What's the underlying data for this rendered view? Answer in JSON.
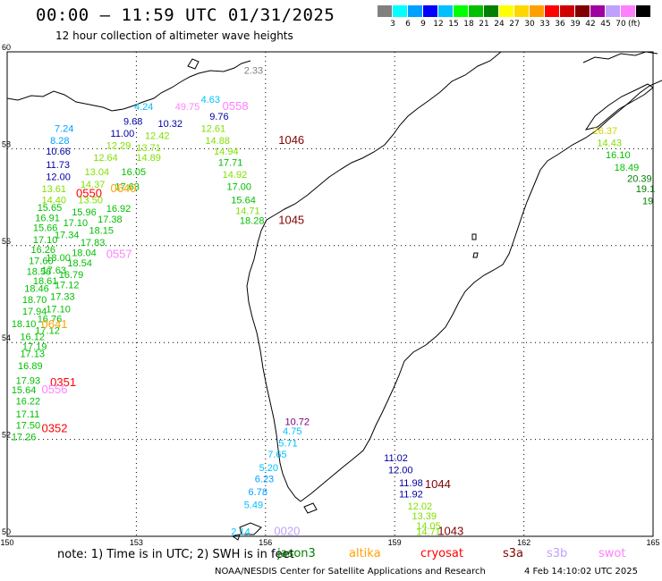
{
  "header": {
    "title": "00:00 – 11:59 UTC 01/31/2025",
    "subtitle": "12 hour collection of altimeter wave heights"
  },
  "legend": {
    "unit": "(ft)",
    "colors": [
      "#808080",
      "#00ffff",
      "#00a0ff",
      "#0000ff",
      "#00c0ff",
      "#00ff00",
      "#00c000",
      "#008000",
      "#ffff00",
      "#ffd700",
      "#ffa000",
      "#ff0000",
      "#d00000",
      "#800000",
      "#a000a0",
      "#c0a0ff",
      "#ff80ff",
      "#000000"
    ],
    "labels": [
      "3",
      "6",
      "9",
      "12",
      "15",
      "18",
      "21",
      "24",
      "27",
      "30",
      "33",
      "36",
      "39",
      "42",
      "45",
      "70"
    ]
  },
  "axes": {
    "x_ticks": [
      "150",
      "153",
      "156",
      "159",
      "162",
      "165"
    ],
    "y_ticks": [
      "60",
      "58",
      "56",
      "54",
      "52",
      "50"
    ]
  },
  "chart_data": {
    "type": "scatter",
    "lon_range": [
      150,
      165
    ],
    "lat_range": [
      50,
      60
    ],
    "grid": true,
    "time_labels": [
      {
        "text": "0558",
        "lon": 155.0,
        "lat": 58.8,
        "color": "#ff80ff"
      },
      {
        "text": "1046",
        "lon": 156.3,
        "lat": 58.1,
        "color": "#800000"
      },
      {
        "text": "0550",
        "lon": 151.6,
        "lat": 57.0,
        "color": "#ff0000"
      },
      {
        "text": "0640",
        "lon": 152.4,
        "lat": 57.1,
        "color": "#ffa000"
      },
      {
        "text": "1045",
        "lon": 156.3,
        "lat": 56.45,
        "color": "#800000"
      },
      {
        "text": "0557",
        "lon": 152.3,
        "lat": 55.75,
        "color": "#ff80ff"
      },
      {
        "text": "0641",
        "lon": 150.8,
        "lat": 54.3,
        "color": "#ffa000"
      },
      {
        "text": "0351",
        "lon": 151.0,
        "lat": 53.1,
        "color": "#ff0000"
      },
      {
        "text": "0556",
        "lon": 150.8,
        "lat": 52.95,
        "color": "#ff80ff"
      },
      {
        "text": "0352",
        "lon": 150.8,
        "lat": 52.15,
        "color": "#ff0000"
      },
      {
        "text": "1044",
        "lon": 159.7,
        "lat": 51.0,
        "color": "#800000"
      },
      {
        "text": "1043",
        "lon": 160.0,
        "lat": 50.03,
        "color": "#800000"
      },
      {
        "text": "0020",
        "lon": 156.2,
        "lat": 50.03,
        "color": "#c0a0ff"
      }
    ],
    "values": [
      {
        "v": "2.33",
        "lon": 155.5,
        "lat": 59.55,
        "color": "#808080"
      },
      {
        "v": "4.63",
        "lon": 154.5,
        "lat": 58.95,
        "color": "#00c0ff"
      },
      {
        "v": "4.24",
        "lon": 152.95,
        "lat": 58.8,
        "color": "#00c0ff"
      },
      {
        "v": "49.75",
        "lon": 153.9,
        "lat": 58.8,
        "color": "#ff80ff"
      },
      {
        "v": "9.68",
        "lon": 152.7,
        "lat": 58.5,
        "color": "#0000a0"
      },
      {
        "v": "10.32",
        "lon": 153.5,
        "lat": 58.45,
        "color": "#0000a0"
      },
      {
        "v": "9.76",
        "lon": 154.7,
        "lat": 58.6,
        "color": "#0000a0"
      },
      {
        "v": "12.61",
        "lon": 154.5,
        "lat": 58.35,
        "color": "#80e000"
      },
      {
        "v": "7.24",
        "lon": 151.1,
        "lat": 58.35,
        "color": "#00a0ff"
      },
      {
        "v": "11.00",
        "lon": 152.4,
        "lat": 58.25,
        "color": "#0000a0"
      },
      {
        "v": "12.42",
        "lon": 153.2,
        "lat": 58.2,
        "color": "#80e000"
      },
      {
        "v": "8.28",
        "lon": 151.0,
        "lat": 58.1,
        "color": "#00a0ff"
      },
      {
        "v": "14.88",
        "lon": 154.6,
        "lat": 58.1,
        "color": "#80e000"
      },
      {
        "v": "12.29",
        "lon": 152.3,
        "lat": 58.0,
        "color": "#80e000"
      },
      {
        "v": "13.71",
        "lon": 153.0,
        "lat": 57.95,
        "color": "#80e000"
      },
      {
        "v": "14.94",
        "lon": 154.8,
        "lat": 57.88,
        "color": "#80e000"
      },
      {
        "v": "10.66",
        "lon": 150.9,
        "lat": 57.88,
        "color": "#0000a0"
      },
      {
        "v": "12.64",
        "lon": 152.0,
        "lat": 57.75,
        "color": "#80e000"
      },
      {
        "v": "14.89",
        "lon": 153.0,
        "lat": 57.75,
        "color": "#80e000"
      },
      {
        "v": "17.71",
        "lon": 154.9,
        "lat": 57.65,
        "color": "#00c000"
      },
      {
        "v": "11.73",
        "lon": 150.9,
        "lat": 57.6,
        "color": "#0000a0"
      },
      {
        "v": "13.04",
        "lon": 151.8,
        "lat": 57.45,
        "color": "#80e000"
      },
      {
        "v": "16.05",
        "lon": 152.65,
        "lat": 57.45,
        "color": "#00c000"
      },
      {
        "v": "14.92",
        "lon": 155.0,
        "lat": 57.4,
        "color": "#80e000"
      },
      {
        "v": "12.00",
        "lon": 150.9,
        "lat": 57.35,
        "color": "#0000a0"
      },
      {
        "v": "14.37",
        "lon": 151.7,
        "lat": 57.2,
        "color": "#80e000"
      },
      {
        "v": "17.63",
        "lon": 152.5,
        "lat": 57.15,
        "color": "#00c000"
      },
      {
        "v": "17.00",
        "lon": 155.1,
        "lat": 57.15,
        "color": "#00c000"
      },
      {
        "v": "13.61",
        "lon": 150.8,
        "lat": 57.1,
        "color": "#80e000"
      },
      {
        "v": "14.40",
        "lon": 150.8,
        "lat": 56.87,
        "color": "#80e000"
      },
      {
        "v": "13.50",
        "lon": 151.65,
        "lat": 56.87,
        "color": "#80e000"
      },
      {
        "v": "15.64",
        "lon": 155.2,
        "lat": 56.87,
        "color": "#00c000"
      },
      {
        "v": "15.65",
        "lon": 150.7,
        "lat": 56.72,
        "color": "#00c000"
      },
      {
        "v": "15.96",
        "lon": 151.5,
        "lat": 56.62,
        "color": "#00c000"
      },
      {
        "v": "16.92",
        "lon": 152.3,
        "lat": 56.7,
        "color": "#00c000"
      },
      {
        "v": "14.71",
        "lon": 155.3,
        "lat": 56.65,
        "color": "#80e000"
      },
      {
        "v": "16.91",
        "lon": 150.65,
        "lat": 56.5,
        "color": "#00c000"
      },
      {
        "v": "17.38",
        "lon": 152.1,
        "lat": 56.48,
        "color": "#00c000"
      },
      {
        "v": "18.28",
        "lon": 155.4,
        "lat": 56.45,
        "color": "#00c000"
      },
      {
        "v": "17.10",
        "lon": 151.3,
        "lat": 56.4,
        "color": "#00c000"
      },
      {
        "v": "15.66",
        "lon": 150.6,
        "lat": 56.3,
        "color": "#00c000"
      },
      {
        "v": "18.15",
        "lon": 151.9,
        "lat": 56.25,
        "color": "#00c000"
      },
      {
        "v": "17.34",
        "lon": 151.1,
        "lat": 56.15,
        "color": "#00c000"
      },
      {
        "v": "17.10",
        "lon": 150.6,
        "lat": 56.05,
        "color": "#00c000"
      },
      {
        "v": "17.83",
        "lon": 151.7,
        "lat": 56.0,
        "color": "#00c000"
      },
      {
        "v": "16.26",
        "lon": 150.55,
        "lat": 55.85,
        "color": "#00c000"
      },
      {
        "v": "18.04",
        "lon": 151.5,
        "lat": 55.78,
        "color": "#00c000"
      },
      {
        "v": "18.00",
        "lon": 150.9,
        "lat": 55.68,
        "color": "#00c000"
      },
      {
        "v": "17.60",
        "lon": 150.5,
        "lat": 55.62,
        "color": "#00c000"
      },
      {
        "v": "18.54",
        "lon": 151.4,
        "lat": 55.57,
        "color": "#00c000"
      },
      {
        "v": "17.63",
        "lon": 150.8,
        "lat": 55.42,
        "color": "#00c000"
      },
      {
        "v": "18.56",
        "lon": 150.45,
        "lat": 55.4,
        "color": "#00c000"
      },
      {
        "v": "16.79",
        "lon": 151.2,
        "lat": 55.33,
        "color": "#00c000"
      },
      {
        "v": "18.61",
        "lon": 150.6,
        "lat": 55.2,
        "color": "#00c000"
      },
      {
        "v": "17.12",
        "lon": 151.1,
        "lat": 55.12,
        "color": "#00c000"
      },
      {
        "v": "18.46",
        "lon": 150.4,
        "lat": 55.05,
        "color": "#00c000"
      },
      {
        "v": "17.33",
        "lon": 151.0,
        "lat": 54.88,
        "color": "#00c000"
      },
      {
        "v": "18.70",
        "lon": 150.35,
        "lat": 54.82,
        "color": "#00c000"
      },
      {
        "v": "17.10",
        "lon": 150.9,
        "lat": 54.62,
        "color": "#00c000"
      },
      {
        "v": "17.94",
        "lon": 150.35,
        "lat": 54.58,
        "color": "#00c000"
      },
      {
        "v": "16.76",
        "lon": 150.7,
        "lat": 54.42,
        "color": "#00c000"
      },
      {
        "v": "18.10",
        "lon": 150.1,
        "lat": 54.32,
        "color": "#00c000"
      },
      {
        "v": "17.12",
        "lon": 150.65,
        "lat": 54.18,
        "color": "#00c000"
      },
      {
        "v": "16.12",
        "lon": 150.3,
        "lat": 54.05,
        "color": "#00c000"
      },
      {
        "v": "17.19",
        "lon": 150.35,
        "lat": 53.85,
        "color": "#00c000"
      },
      {
        "v": "17.13",
        "lon": 150.3,
        "lat": 53.7,
        "color": "#00c000"
      },
      {
        "v": "16.89",
        "lon": 150.25,
        "lat": 53.45,
        "color": "#00c000"
      },
      {
        "v": "17.93",
        "lon": 150.2,
        "lat": 53.15,
        "color": "#00c000"
      },
      {
        "v": "15.64",
        "lon": 150.1,
        "lat": 52.95,
        "color": "#00c000"
      },
      {
        "v": "16.22",
        "lon": 150.2,
        "lat": 52.72,
        "color": "#00c000"
      },
      {
        "v": "17.11",
        "lon": 150.2,
        "lat": 52.45,
        "color": "#00c000"
      },
      {
        "v": "17.50",
        "lon": 150.2,
        "lat": 52.22,
        "color": "#00c000"
      },
      {
        "v": "17.26",
        "lon": 150.1,
        "lat": 51.98,
        "color": "#00c000"
      },
      {
        "v": "26.37",
        "lon": 163.6,
        "lat": 58.3,
        "color": "#d0d000"
      },
      {
        "v": "14.43",
        "lon": 163.7,
        "lat": 58.05,
        "color": "#80e000"
      },
      {
        "v": "16.10",
        "lon": 163.9,
        "lat": 57.8,
        "color": "#00c000"
      },
      {
        "v": "18.49",
        "lon": 164.1,
        "lat": 57.55,
        "color": "#00c000"
      },
      {
        "v": "20.39",
        "lon": 164.4,
        "lat": 57.32,
        "color": "#008000"
      },
      {
        "v": "19.1",
        "lon": 164.6,
        "lat": 57.1,
        "color": "#008000"
      },
      {
        "v": "19",
        "lon": 164.75,
        "lat": 56.85,
        "color": "#008000"
      },
      {
        "v": "10.72",
        "lon": 156.45,
        "lat": 52.3,
        "color": "#800080"
      },
      {
        "v": "4.75",
        "lon": 156.4,
        "lat": 52.1,
        "color": "#00c0ff"
      },
      {
        "v": "5.71",
        "lon": 156.3,
        "lat": 51.85,
        "color": "#00c0ff"
      },
      {
        "v": "7.65",
        "lon": 156.05,
        "lat": 51.62,
        "color": "#00c0ff"
      },
      {
        "v": "5.20",
        "lon": 155.85,
        "lat": 51.35,
        "color": "#00c0ff"
      },
      {
        "v": "6.23",
        "lon": 155.75,
        "lat": 51.12,
        "color": "#00a0ff"
      },
      {
        "v": "6.78",
        "lon": 155.6,
        "lat": 50.85,
        "color": "#00a0ff"
      },
      {
        "v": "5.49",
        "lon": 155.5,
        "lat": 50.58,
        "color": "#00c0ff"
      },
      {
        "v": "2.14",
        "lon": 155.2,
        "lat": 50.03,
        "color": "#00c0ff"
      },
      {
        "v": "11.02",
        "lon": 158.75,
        "lat": 51.55,
        "color": "#0000a0"
      },
      {
        "v": "12.00",
        "lon": 158.85,
        "lat": 51.3,
        "color": "#0000a0"
      },
      {
        "v": "11.98",
        "lon": 159.1,
        "lat": 51.03,
        "color": "#0000a0"
      },
      {
        "v": "11.92",
        "lon": 159.1,
        "lat": 50.8,
        "color": "#0000a0"
      },
      {
        "v": "12.02",
        "lon": 159.3,
        "lat": 50.55,
        "color": "#80e000"
      },
      {
        "v": "13.39",
        "lon": 159.4,
        "lat": 50.35,
        "color": "#80e000"
      },
      {
        "v": "14.05",
        "lon": 159.5,
        "lat": 50.15,
        "color": "#80e000"
      },
      {
        "v": "14.71",
        "lon": 159.5,
        "lat": 50.03,
        "color": "#80e000"
      }
    ]
  },
  "note": "note:  1) Time is in UTC;  2) SWH is in feet",
  "satellites": [
    {
      "name": "jason3",
      "color": "#008000"
    },
    {
      "name": "altika",
      "color": "#ffa000"
    },
    {
      "name": "cryosat",
      "color": "#ff0000"
    },
    {
      "name": "s3a",
      "color": "#800000"
    },
    {
      "name": "s3b",
      "color": "#c0a0ff"
    },
    {
      "name": "swot",
      "color": "#ff80ff"
    }
  ],
  "footer": {
    "credit": "NOAA/NESDIS Center for Satellite Applications and Research",
    "generated": "4 Feb 14:10:02 UTC 2025"
  }
}
